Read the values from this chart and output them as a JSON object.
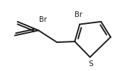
{
  "background": "#ffffff",
  "line_color": "#1a1a1a",
  "line_width": 1.4,
  "font_size": 7.2,
  "font_color": "#1a1a1a",
  "S_label": "S",
  "Br1_label": "Br",
  "Br2_label": "Br"
}
